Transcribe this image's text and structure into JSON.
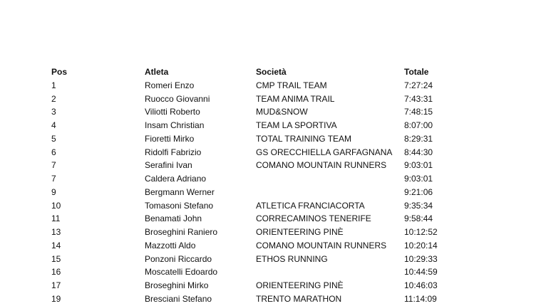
{
  "headers": {
    "pos": "Pos",
    "athlete": "Atleta",
    "club": "Società",
    "total": "Totale"
  },
  "rows": [
    {
      "pos": "1",
      "athlete": "Romeri Enzo",
      "club": "CMP TRAIL TEAM",
      "total": "7:27:24"
    },
    {
      "pos": "2",
      "athlete": "Ruocco Giovanni",
      "club": "TEAM ANIMA TRAIL",
      "total": "7:43:31"
    },
    {
      "pos": "3",
      "athlete": "Viliotti Roberto",
      "club": "MUD&SNOW",
      "total": "7:48:15"
    },
    {
      "pos": "4",
      "athlete": "Insam Christian",
      "club": "TEAM LA SPORTIVA",
      "total": "8:07:00"
    },
    {
      "pos": "5",
      "athlete": "Fioretti Mirko",
      "club": "TOTAL TRAINING TEAM",
      "total": "8:29:31"
    },
    {
      "pos": "6",
      "athlete": "Ridolfi Fabrizio",
      "club": "GS ORECCHIELLA GARFAGNANA",
      "total": "8:44:30"
    },
    {
      "pos": "7",
      "athlete": "Serafini Ivan",
      "club": "COMANO MOUNTAIN RUNNERS",
      "total": "9:03:01"
    },
    {
      "pos": "7",
      "athlete": "Caldera Adriano",
      "club": "",
      "total": "9:03:01"
    },
    {
      "pos": "9",
      "athlete": "Bergmann Werner",
      "club": "",
      "total": "9:21:06"
    },
    {
      "pos": "10",
      "athlete": "Tomasoni Stefano",
      "club": "ATLETICA FRANCIACORTA",
      "total": "9:35:34"
    },
    {
      "pos": "11",
      "athlete": "Benamati John",
      "club": "CORRECAMINOS TENERIFE",
      "total": "9:58:44"
    },
    {
      "pos": "13",
      "athlete": "Broseghini Raniero",
      "club": "ORIENTEERING PINÈ",
      "total": "10:12:52"
    },
    {
      "pos": "14",
      "athlete": "Mazzotti Aldo",
      "club": "COMANO MOUNTAIN RUNNERS",
      "total": "10:20:14"
    },
    {
      "pos": "15",
      "athlete": "Ponzoni Riccardo",
      "club": "ETHOS RUNNING",
      "total": "10:29:33"
    },
    {
      "pos": "16",
      "athlete": "Moscatelli Edoardo",
      "club": "",
      "total": "10:44:59"
    },
    {
      "pos": "17",
      "athlete": "Broseghini Mirko",
      "club": "ORIENTEERING PINÈ",
      "total": "10:46:03"
    },
    {
      "pos": "19",
      "athlete": "Bresciani Stefano",
      "club": "TRENTO MARATHON",
      "total": "11:14:09"
    }
  ]
}
